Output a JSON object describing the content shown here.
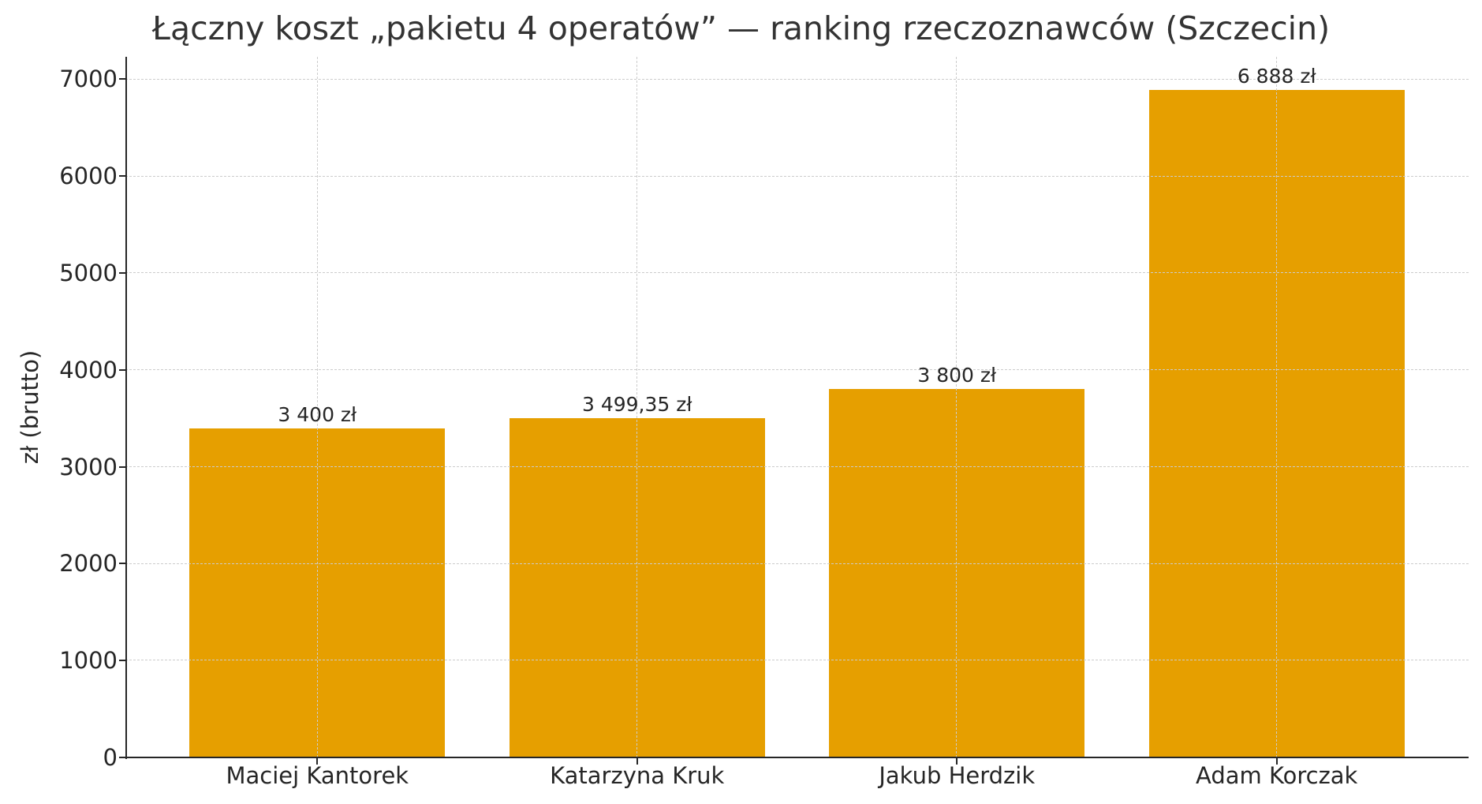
{
  "chart": {
    "title": "Łączny koszt „pakietu 4 operatów” — ranking rzeczoznawców (Szczecin)",
    "ylabel": "zł (brutto)",
    "bar_color": "#E69F00",
    "y_ticks": [
      "0",
      "1000",
      "2000",
      "3000",
      "4000",
      "5000",
      "6000",
      "7000"
    ],
    "bars": [
      {
        "label": "Maciej Kantorek",
        "value_label": "3 400 zł"
      },
      {
        "label": "Katarzyna Kruk",
        "value_label": "3 499,35 zł"
      },
      {
        "label": "Jakub Herdzik",
        "value_label": "3 800 zł"
      },
      {
        "label": "Adam Korczak",
        "value_label": "6 888 zł"
      }
    ]
  },
  "chart_data": {
    "type": "bar",
    "title": "Łączny koszt „pakietu 4 operatów” — ranking rzeczoznawców (Szczecin)",
    "xlabel": "",
    "ylabel": "zł (brutto)",
    "categories": [
      "Maciej Kantorek",
      "Katarzyna Kruk",
      "Jakub Herdzik",
      "Adam Korczak"
    ],
    "values": [
      3400,
      3499.35,
      3800,
      6888
    ],
    "data_labels": [
      "3 400 zł",
      "3 499,35 zł",
      "3 800 zł",
      "6 888 zł"
    ],
    "ylim": [
      0,
      7232
    ],
    "yticks": [
      0,
      1000,
      2000,
      3000,
      4000,
      5000,
      6000,
      7000
    ],
    "grid": true,
    "legend": null,
    "colors": [
      "#E69F00"
    ]
  }
}
